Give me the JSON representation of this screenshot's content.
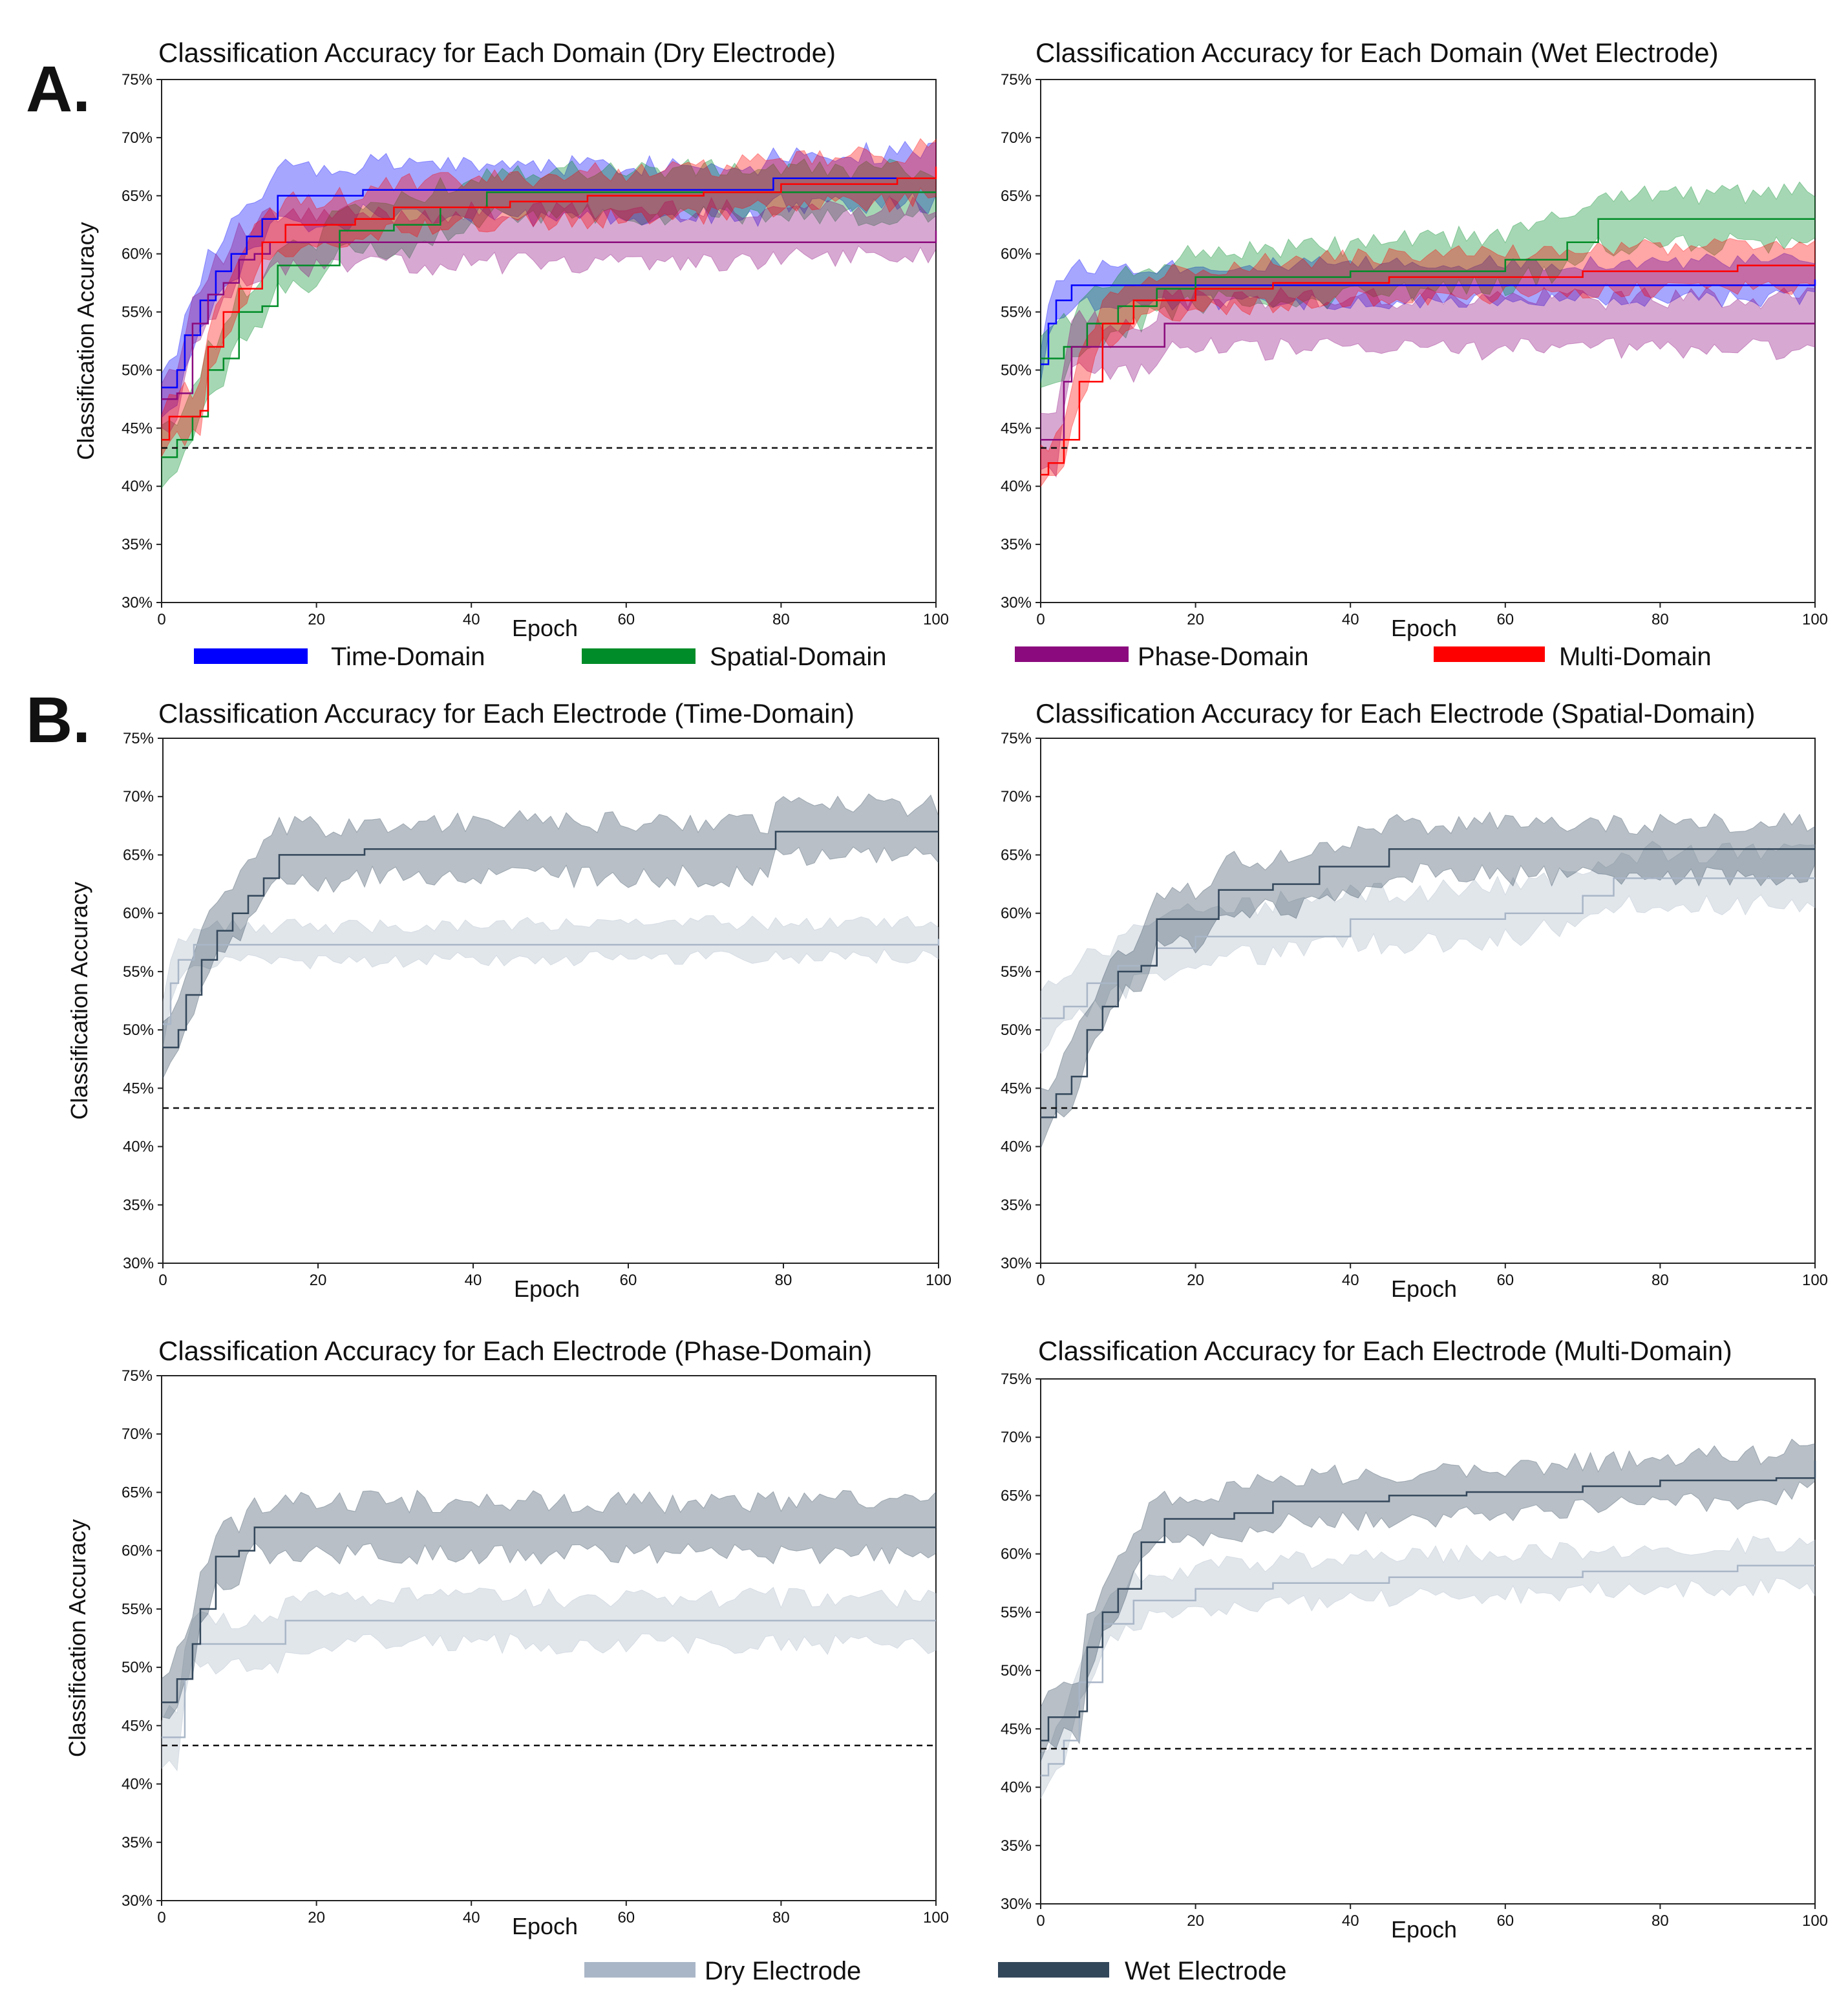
{
  "panel_labels": [
    "A.",
    "B."
  ],
  "colors": {
    "time": "#0000ff",
    "spatial": "#008c28",
    "phase": "#8b0a7d",
    "multi": "#ff0000",
    "dry": "#a9b6c7",
    "wet": "#33475b"
  },
  "legend_domains": [
    {
      "label": "Time-Domain",
      "color": "#0000ff"
    },
    {
      "label": "Spatial-Domain",
      "color": "#008c28"
    },
    {
      "label": "Phase-Domain",
      "color": "#8b0a7d"
    },
    {
      "label": "Multi-Domain",
      "color": "#ff0000"
    }
  ],
  "legend_electrodes": [
    {
      "label": "Dry Electrode",
      "color": "#a9b6c7"
    },
    {
      "label": "Wet Electrode",
      "color": "#33475b"
    }
  ],
  "chart_data": [
    {
      "type": "line",
      "title": "Classification Accuracy for Each Domain (Dry Electrode)",
      "xlabel": "Epoch",
      "ylabel": "Classification Accuracy",
      "xlim": [
        0,
        100
      ],
      "ylim": [
        30,
        75
      ],
      "xticks": [
        "0",
        "20",
        "40",
        "60",
        "80",
        "100"
      ],
      "yticks": [
        "30%",
        "35%",
        "40%",
        "45%",
        "50%",
        "55%",
        "60%",
        "65%",
        "70%",
        "75%"
      ],
      "chance_level": 43.3,
      "series": [
        {
          "name": "Time-Domain",
          "color": "#0000ff",
          "points": [
            [
              0,
              48.5
            ],
            [
              2,
              50
            ],
            [
              3,
              53
            ],
            [
              5,
              56
            ],
            [
              7,
              58.5
            ],
            [
              9,
              60
            ],
            [
              11,
              61.5
            ],
            [
              13,
              63
            ],
            [
              15,
              65
            ],
            [
              25,
              65
            ],
            [
              26,
              65.5
            ],
            [
              78,
              65.5
            ],
            [
              79,
              66.5
            ],
            [
              100,
              66.5
            ]
          ],
          "band": 2.2
        },
        {
          "name": "Spatial-Domain",
          "color": "#008c28",
          "points": [
            [
              0,
              42.5
            ],
            [
              2,
              44
            ],
            [
              4,
              46
            ],
            [
              6,
              50
            ],
            [
              8,
              51
            ],
            [
              10,
              55
            ],
            [
              13,
              55.5
            ],
            [
              15,
              59
            ],
            [
              20,
              59
            ],
            [
              23,
              62
            ],
            [
              30,
              62.5
            ],
            [
              34,
              62.5
            ],
            [
              36,
              64
            ],
            [
              40,
              64
            ],
            [
              42,
              65.3
            ],
            [
              100,
              65.3
            ]
          ],
          "band": 2.0
        },
        {
          "name": "Phase-Domain",
          "color": "#8b0a7d",
          "points": [
            [
              0,
              47.5
            ],
            [
              2,
              48
            ],
            [
              4,
              54
            ],
            [
              6,
              56.5
            ],
            [
              8,
              57.5
            ],
            [
              10,
              59.5
            ],
            [
              12,
              60
            ],
            [
              14,
              61
            ],
            [
              100,
              62
            ]
          ],
          "band": 2.2
        },
        {
          "name": "Multi-Domain",
          "color": "#ff0000",
          "points": [
            [
              0,
              44
            ],
            [
              1,
              46
            ],
            [
              5,
              46.5
            ],
            [
              6,
              52
            ],
            [
              8,
              55
            ],
            [
              10,
              57
            ],
            [
              13,
              61
            ],
            [
              16,
              62.5
            ],
            [
              25,
              63
            ],
            [
              30,
              64
            ],
            [
              45,
              64.5
            ],
            [
              55,
              65
            ],
            [
              70,
              65.3
            ],
            [
              80,
              66
            ],
            [
              95,
              66.5
            ],
            [
              100,
              67.5
            ]
          ],
          "band": 2.0
        }
      ]
    },
    {
      "type": "line",
      "title": "Classification Accuracy for Each Domain (Wet Electrode)",
      "xlabel": "Epoch",
      "ylabel": "",
      "xlim": [
        0,
        100
      ],
      "ylim": [
        30,
        75
      ],
      "xticks": [
        "0",
        "20",
        "40",
        "60",
        "80",
        "100"
      ],
      "yticks": [
        "30%",
        "35%",
        "40%",
        "45%",
        "50%",
        "55%",
        "60%",
        "65%",
        "70%",
        "75%"
      ],
      "chance_level": 43.3,
      "series": [
        {
          "name": "Time-Domain",
          "color": "#0000ff",
          "points": [
            [
              0,
              50.5
            ],
            [
              1,
              54
            ],
            [
              2,
              56
            ],
            [
              4,
              57.3
            ],
            [
              100,
              57.8
            ]
          ],
          "band": 1.6
        },
        {
          "name": "Spatial-Domain",
          "color": "#008c28",
          "points": [
            [
              0,
              51
            ],
            [
              3,
              52
            ],
            [
              6,
              54
            ],
            [
              10,
              55.5
            ],
            [
              15,
              57
            ],
            [
              20,
              58
            ],
            [
              40,
              58.5
            ],
            [
              60,
              59.5
            ],
            [
              68,
              61
            ],
            [
              72,
              63
            ],
            [
              100,
              63
            ]
          ],
          "band": 2.2
        },
        {
          "name": "Phase-Domain",
          "color": "#8b0a7d",
          "points": [
            [
              0,
              44
            ],
            [
              2,
              44
            ],
            [
              3,
              49
            ],
            [
              4,
              52
            ],
            [
              15,
              52
            ],
            [
              16,
              54
            ],
            [
              100,
              54
            ]
          ],
          "band": 2.2
        },
        {
          "name": "Multi-Domain",
          "color": "#ff0000",
          "points": [
            [
              0,
              41
            ],
            [
              1,
              42
            ],
            [
              3,
              44
            ],
            [
              5,
              49
            ],
            [
              8,
              54
            ],
            [
              12,
              56
            ],
            [
              20,
              57
            ],
            [
              30,
              57.5
            ],
            [
              45,
              58
            ],
            [
              70,
              58.5
            ],
            [
              90,
              59
            ],
            [
              100,
              59
            ]
          ],
          "band": 1.8
        }
      ]
    },
    {
      "type": "line",
      "title": "Classification Accuracy for Each Electrode (Time-Domain)",
      "xlabel": "Epoch",
      "ylabel": "Classification Accuracy",
      "xlim": [
        0,
        100
      ],
      "ylim": [
        30,
        75
      ],
      "xticks": [
        "0",
        "20",
        "40",
        "60",
        "80",
        "100"
      ],
      "yticks": [
        "30%",
        "35%",
        "40%",
        "45%",
        "50%",
        "55%",
        "60%",
        "65%",
        "70%",
        "75%"
      ],
      "chance_level": 43.3,
      "series": [
        {
          "name": "Dry Electrode",
          "color": "#a9b6c7",
          "points": [
            [
              0,
              50.5
            ],
            [
              1,
              54
            ],
            [
              2,
              56
            ],
            [
              4,
              57.3
            ],
            [
              100,
              57.8
            ]
          ],
          "band": 1.5
        },
        {
          "name": "Wet Electrode",
          "color": "#33475b",
          "points": [
            [
              0,
              48.5
            ],
            [
              2,
              50
            ],
            [
              3,
              53
            ],
            [
              5,
              56
            ],
            [
              7,
              58.5
            ],
            [
              9,
              60
            ],
            [
              11,
              61.5
            ],
            [
              13,
              63
            ],
            [
              15,
              65
            ],
            [
              25,
              65
            ],
            [
              26,
              65.5
            ],
            [
              78,
              65.5
            ],
            [
              79,
              67
            ],
            [
              100,
              67
            ]
          ],
          "band": 2.3
        }
      ]
    },
    {
      "type": "line",
      "title": "Classification Accuracy for Each Electrode (Spatial-Domain)",
      "xlabel": "Epoch",
      "ylabel": "",
      "xlim": [
        0,
        100
      ],
      "ylim": [
        30,
        75
      ],
      "xticks": [
        "0",
        "20",
        "40",
        "60",
        "80",
        "100"
      ],
      "yticks": [
        "30%",
        "35%",
        "40%",
        "45%",
        "50%",
        "55%",
        "60%",
        "65%",
        "70%",
        "75%"
      ],
      "chance_level": 43.3,
      "series": [
        {
          "name": "Dry Electrode",
          "color": "#a9b6c7",
          "points": [
            [
              0,
              51
            ],
            [
              3,
              52
            ],
            [
              6,
              54
            ],
            [
              10,
              55.5
            ],
            [
              15,
              57
            ],
            [
              20,
              58
            ],
            [
              40,
              59.5
            ],
            [
              60,
              60
            ],
            [
              70,
              61.5
            ],
            [
              74,
              63
            ],
            [
              100,
              63
            ]
          ],
          "band": 2.2
        },
        {
          "name": "Wet Electrode",
          "color": "#33475b",
          "points": [
            [
              0,
              42.5
            ],
            [
              2,
              44.5
            ],
            [
              4,
              46
            ],
            [
              6,
              50
            ],
            [
              8,
              52
            ],
            [
              10,
              55
            ],
            [
              13,
              55.5
            ],
            [
              15,
              59.5
            ],
            [
              20,
              59.5
            ],
            [
              23,
              62
            ],
            [
              30,
              62.5
            ],
            [
              34,
              62.5
            ],
            [
              36,
              64
            ],
            [
              40,
              64
            ],
            [
              45,
              65.5
            ],
            [
              100,
              65.5
            ]
          ],
          "band": 2.2
        }
      ]
    },
    {
      "type": "line",
      "title": "Classification Accuracy for Each Electrode (Phase-Domain)",
      "xlabel": "Epoch",
      "ylabel": "Classification Accuracy",
      "xlim": [
        0,
        100
      ],
      "ylim": [
        30,
        75
      ],
      "xticks": [
        "0",
        "20",
        "40",
        "60",
        "80",
        "100"
      ],
      "yticks": [
        "30%",
        "35%",
        "40%",
        "45%",
        "50%",
        "55%",
        "60%",
        "65%",
        "70%",
        "75%"
      ],
      "chance_level": 43.3,
      "series": [
        {
          "name": "Dry Electrode",
          "color": "#a9b6c7",
          "points": [
            [
              0,
              44
            ],
            [
              2,
              44
            ],
            [
              3,
              49
            ],
            [
              4,
              52
            ],
            [
              15,
              52
            ],
            [
              16,
              54
            ],
            [
              100,
              54
            ]
          ],
          "band": 2.0
        },
        {
          "name": "Wet Electrode",
          "color": "#33475b",
          "points": [
            [
              0,
              47
            ],
            [
              2,
              49
            ],
            [
              4,
              52
            ],
            [
              5,
              55
            ],
            [
              7,
              59.5
            ],
            [
              10,
              60
            ],
            [
              12,
              62
            ],
            [
              100,
              62
            ]
          ],
          "band": 2.2
        }
      ]
    },
    {
      "type": "line",
      "title": "Classification Accuracy for Each Electrode (Multi-Domain)",
      "xlabel": "Epoch",
      "ylabel": "",
      "xlim": [
        0,
        100
      ],
      "ylim": [
        30,
        75
      ],
      "xticks": [
        "0",
        "20",
        "40",
        "60",
        "80",
        "100"
      ],
      "yticks": [
        "30%",
        "35%",
        "40%",
        "45%",
        "50%",
        "55%",
        "60%",
        "65%",
        "70%",
        "75%"
      ],
      "chance_level": 43.3,
      "series": [
        {
          "name": "Dry Electrode",
          "color": "#a9b6c7",
          "points": [
            [
              0,
              41
            ],
            [
              1,
              42
            ],
            [
              3,
              44
            ],
            [
              5,
              49
            ],
            [
              8,
              54
            ],
            [
              12,
              56
            ],
            [
              20,
              57
            ],
            [
              30,
              57.5
            ],
            [
              45,
              58
            ],
            [
              70,
              58.5
            ],
            [
              90,
              59
            ],
            [
              100,
              59
            ]
          ],
          "band": 1.8
        },
        {
          "name": "Wet Electrode",
          "color": "#33475b",
          "points": [
            [
              0,
              44
            ],
            [
              1,
              46
            ],
            [
              5,
              46.5
            ],
            [
              6,
              52
            ],
            [
              8,
              55
            ],
            [
              10,
              57
            ],
            [
              13,
              61
            ],
            [
              16,
              63
            ],
            [
              25,
              63.5
            ],
            [
              30,
              64.5
            ],
            [
              45,
              65
            ],
            [
              55,
              65.3
            ],
            [
              70,
              65.8
            ],
            [
              80,
              66.3
            ],
            [
              95,
              66.5
            ],
            [
              100,
              68
            ]
          ],
          "band": 2.0
        }
      ]
    }
  ]
}
